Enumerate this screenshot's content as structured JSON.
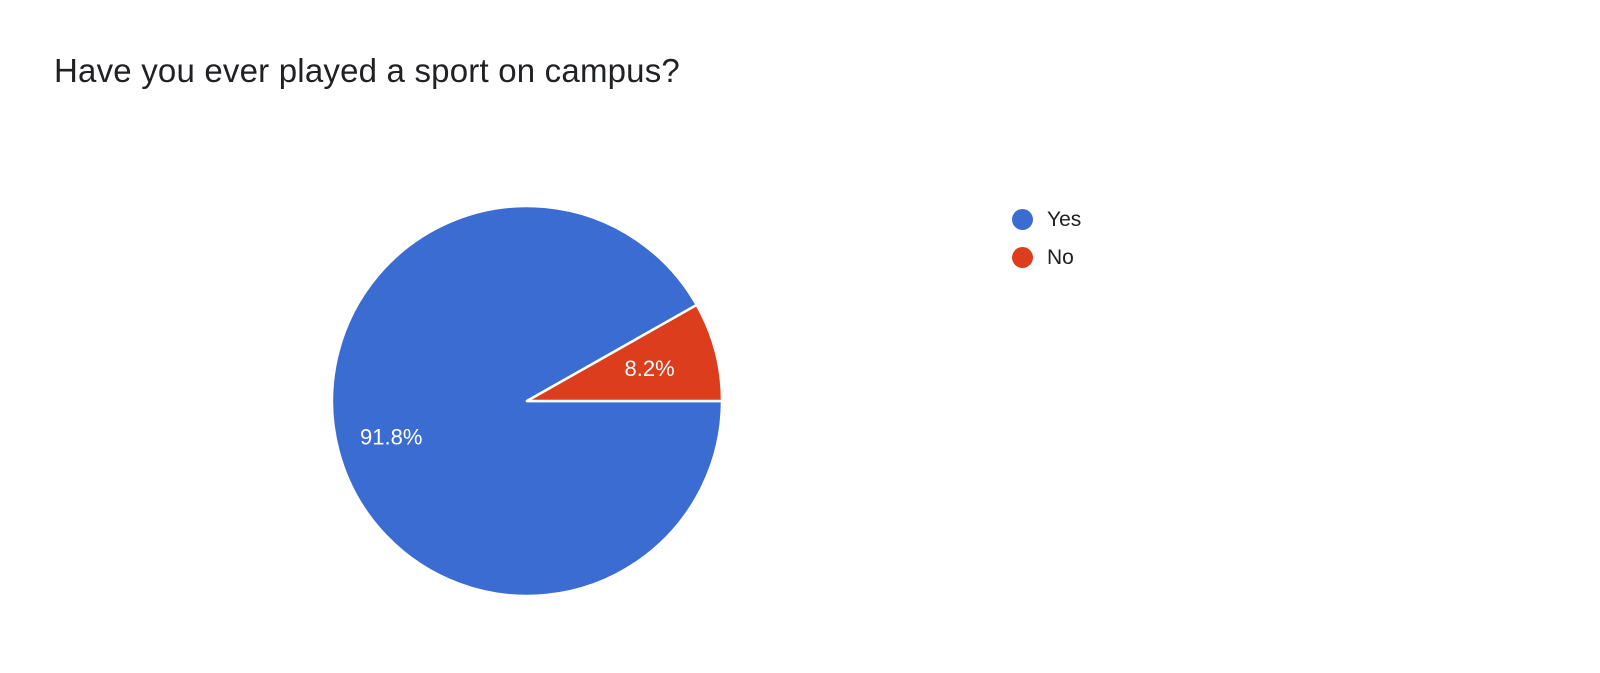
{
  "colors": {
    "background": "#ffffff",
    "title_text": "#202124",
    "legend_text": "#212121",
    "slice_label_text": "#ffffff",
    "slice_border": "#ffffff"
  },
  "chart_data": {
    "type": "pie",
    "title": "Have you ever played a sport on campus?",
    "categories": [
      "Yes",
      "No"
    ],
    "values": [
      91.8,
      8.2
    ],
    "labels": [
      "91.8%",
      "8.2%"
    ],
    "colors": [
      "#3b6cd1",
      "#dc3d1d"
    ],
    "units": "%",
    "legend_position": "right",
    "start_angle_deg": 0,
    "direction": "clockwise",
    "grid": false
  }
}
